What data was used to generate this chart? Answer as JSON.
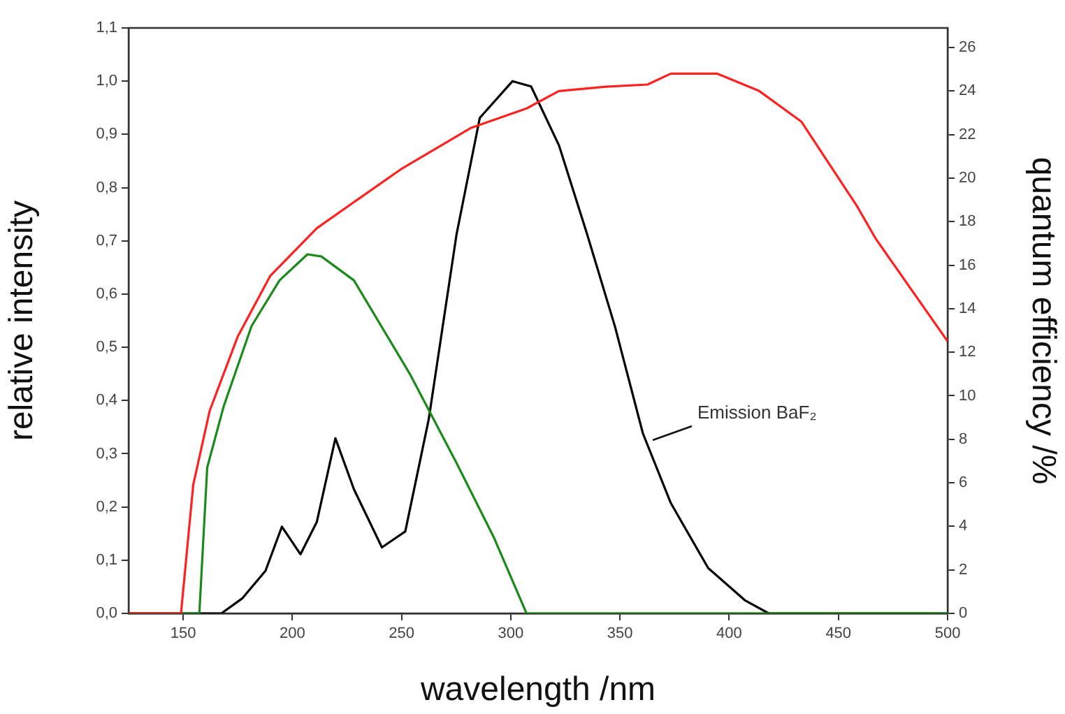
{
  "chart_data": {
    "type": "line",
    "xlabel": "wavelength /nm",
    "ylabel": "relative intensity",
    "y2label": "quantum efficiency /%",
    "xlim": [
      125,
      500
    ],
    "xticks": [
      150,
      200,
      250,
      300,
      350,
      400,
      450,
      500
    ],
    "ylim": [
      0,
      1.1
    ],
    "yticks": [
      {
        "value": 0,
        "label": "0,0"
      },
      {
        "value": 0.1,
        "label": "0,1"
      },
      {
        "value": 0.2,
        "label": "0,2"
      },
      {
        "value": 0.3,
        "label": "0,3"
      },
      {
        "value": 0.4,
        "label": "0,4"
      },
      {
        "value": 0.5,
        "label": "0,5"
      },
      {
        "value": 0.6,
        "label": "0,6"
      },
      {
        "value": 0.7,
        "label": "0,7"
      },
      {
        "value": 0.8,
        "label": "0,8"
      },
      {
        "value": 0.9,
        "label": "0,9"
      },
      {
        "value": 1,
        "label": "1,0"
      },
      {
        "value": 1.1,
        "label": "1,1"
      }
    ],
    "y2lim": [
      0,
      26.9
    ],
    "y2ticks": [
      0,
      2,
      4,
      6,
      8,
      10,
      12,
      14,
      16,
      18,
      20,
      22,
      24,
      26
    ],
    "grid": false,
    "legend": false,
    "marker": "none",
    "line_style": "solid",
    "series": [
      {
        "color": "#ff2020",
        "axis": "y2",
        "x": [
          125,
          149,
          154.6,
          162.1,
          174.9,
          189.8,
          211.2,
          228.2,
          249.6,
          281.6,
          307.2,
          322,
          343.4,
          362.6,
          373.3,
          394.6,
          413.8,
          433,
          458.6,
          467.2,
          500
        ],
        "values": [
          0,
          0,
          5.9,
          9.3,
          12.7,
          15.5,
          17.7,
          18.9,
          20.4,
          22.3,
          23.2,
          24,
          24.2,
          24.3,
          24.8,
          24.8,
          24,
          22.6,
          18.7,
          17.2,
          12.5
        ]
      },
      {
        "color": "#1a8a1a",
        "axis": "y2",
        "x": [
          125,
          157.4,
          161,
          168.5,
          181.3,
          194.1,
          206.9,
          213.3,
          228.2,
          253.8,
          275.2,
          292.2,
          307.2,
          500
        ],
        "values": [
          0,
          0,
          6.7,
          9.5,
          13.2,
          15.3,
          16.5,
          16.4,
          15.3,
          11,
          6.9,
          3.5,
          0,
          0
        ]
      },
      {
        "color": "#000000",
        "x": [
          125,
          167.5,
          177,
          187.7,
          195.2,
          203.7,
          211.2,
          219.7,
          228.2,
          241,
          251.7,
          262.4,
          275.2,
          285.8,
          300.8,
          309.3,
          322.1,
          334.9,
          347.7,
          360.5,
          373.3,
          390.4,
          407.4,
          418.1,
          500
        ],
        "values": [
          0,
          0,
          0.028,
          0.08,
          0.163,
          0.111,
          0.172,
          0.329,
          0.233,
          0.124,
          0.154,
          0.364,
          0.713,
          0.931,
          1,
          0.99,
          0.879,
          0.713,
          0.539,
          0.338,
          0.207,
          0.085,
          0.024,
          0,
          0
        ]
      }
    ],
    "annotations": [
      {
        "text": "Emission BaF₂",
        "x": 363.7,
        "y": 0.324
      }
    ]
  }
}
